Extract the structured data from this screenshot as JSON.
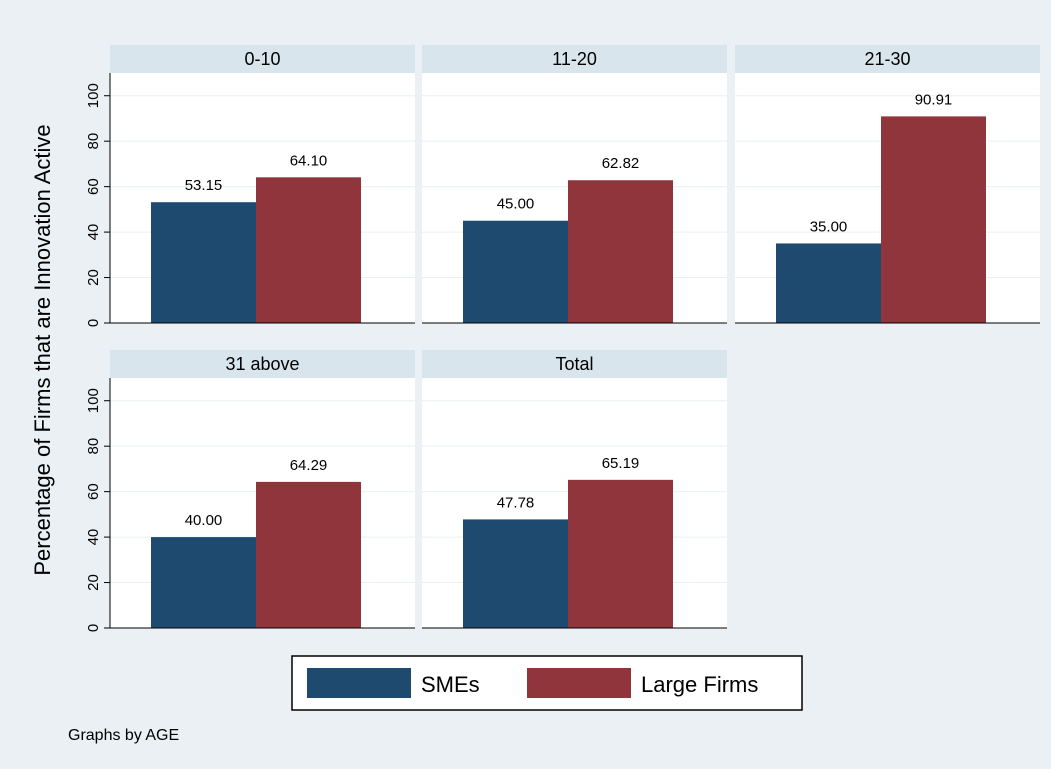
{
  "chart_data": {
    "type": "bar",
    "ylabel": "Percentage of Firms that are Innovation Active",
    "ylim": [
      0,
      110
    ],
    "yticks": [
      0,
      20,
      40,
      60,
      80,
      100
    ],
    "grid": true,
    "legend_position": "bottom",
    "note": "Graphs by AGE",
    "series": [
      {
        "name": "SMEs",
        "color": "#1f4a70"
      },
      {
        "name": "Large Firms",
        "color": "#90353b"
      }
    ],
    "panels": [
      {
        "title": "0-10",
        "values": [
          53.15,
          64.1
        ],
        "labels": [
          "53.15",
          "64.10"
        ]
      },
      {
        "title": "11-20",
        "values": [
          45.0,
          62.82
        ],
        "labels": [
          "45.00",
          "62.82"
        ]
      },
      {
        "title": "21-30",
        "values": [
          35.0,
          90.91
        ],
        "labels": [
          "35.00",
          "90.91"
        ]
      },
      {
        "title": "31 above",
        "values": [
          40.0,
          64.29
        ],
        "labels": [
          "40.00",
          "64.29"
        ]
      },
      {
        "title": "Total",
        "values": [
          47.78,
          65.19
        ],
        "labels": [
          "47.78",
          "65.19"
        ]
      }
    ]
  },
  "colors": {
    "background": "#eaf0f3",
    "panel_header": "#d9e5ec",
    "plot_area": "#ffffff",
    "grid": "#eaf0f3"
  }
}
